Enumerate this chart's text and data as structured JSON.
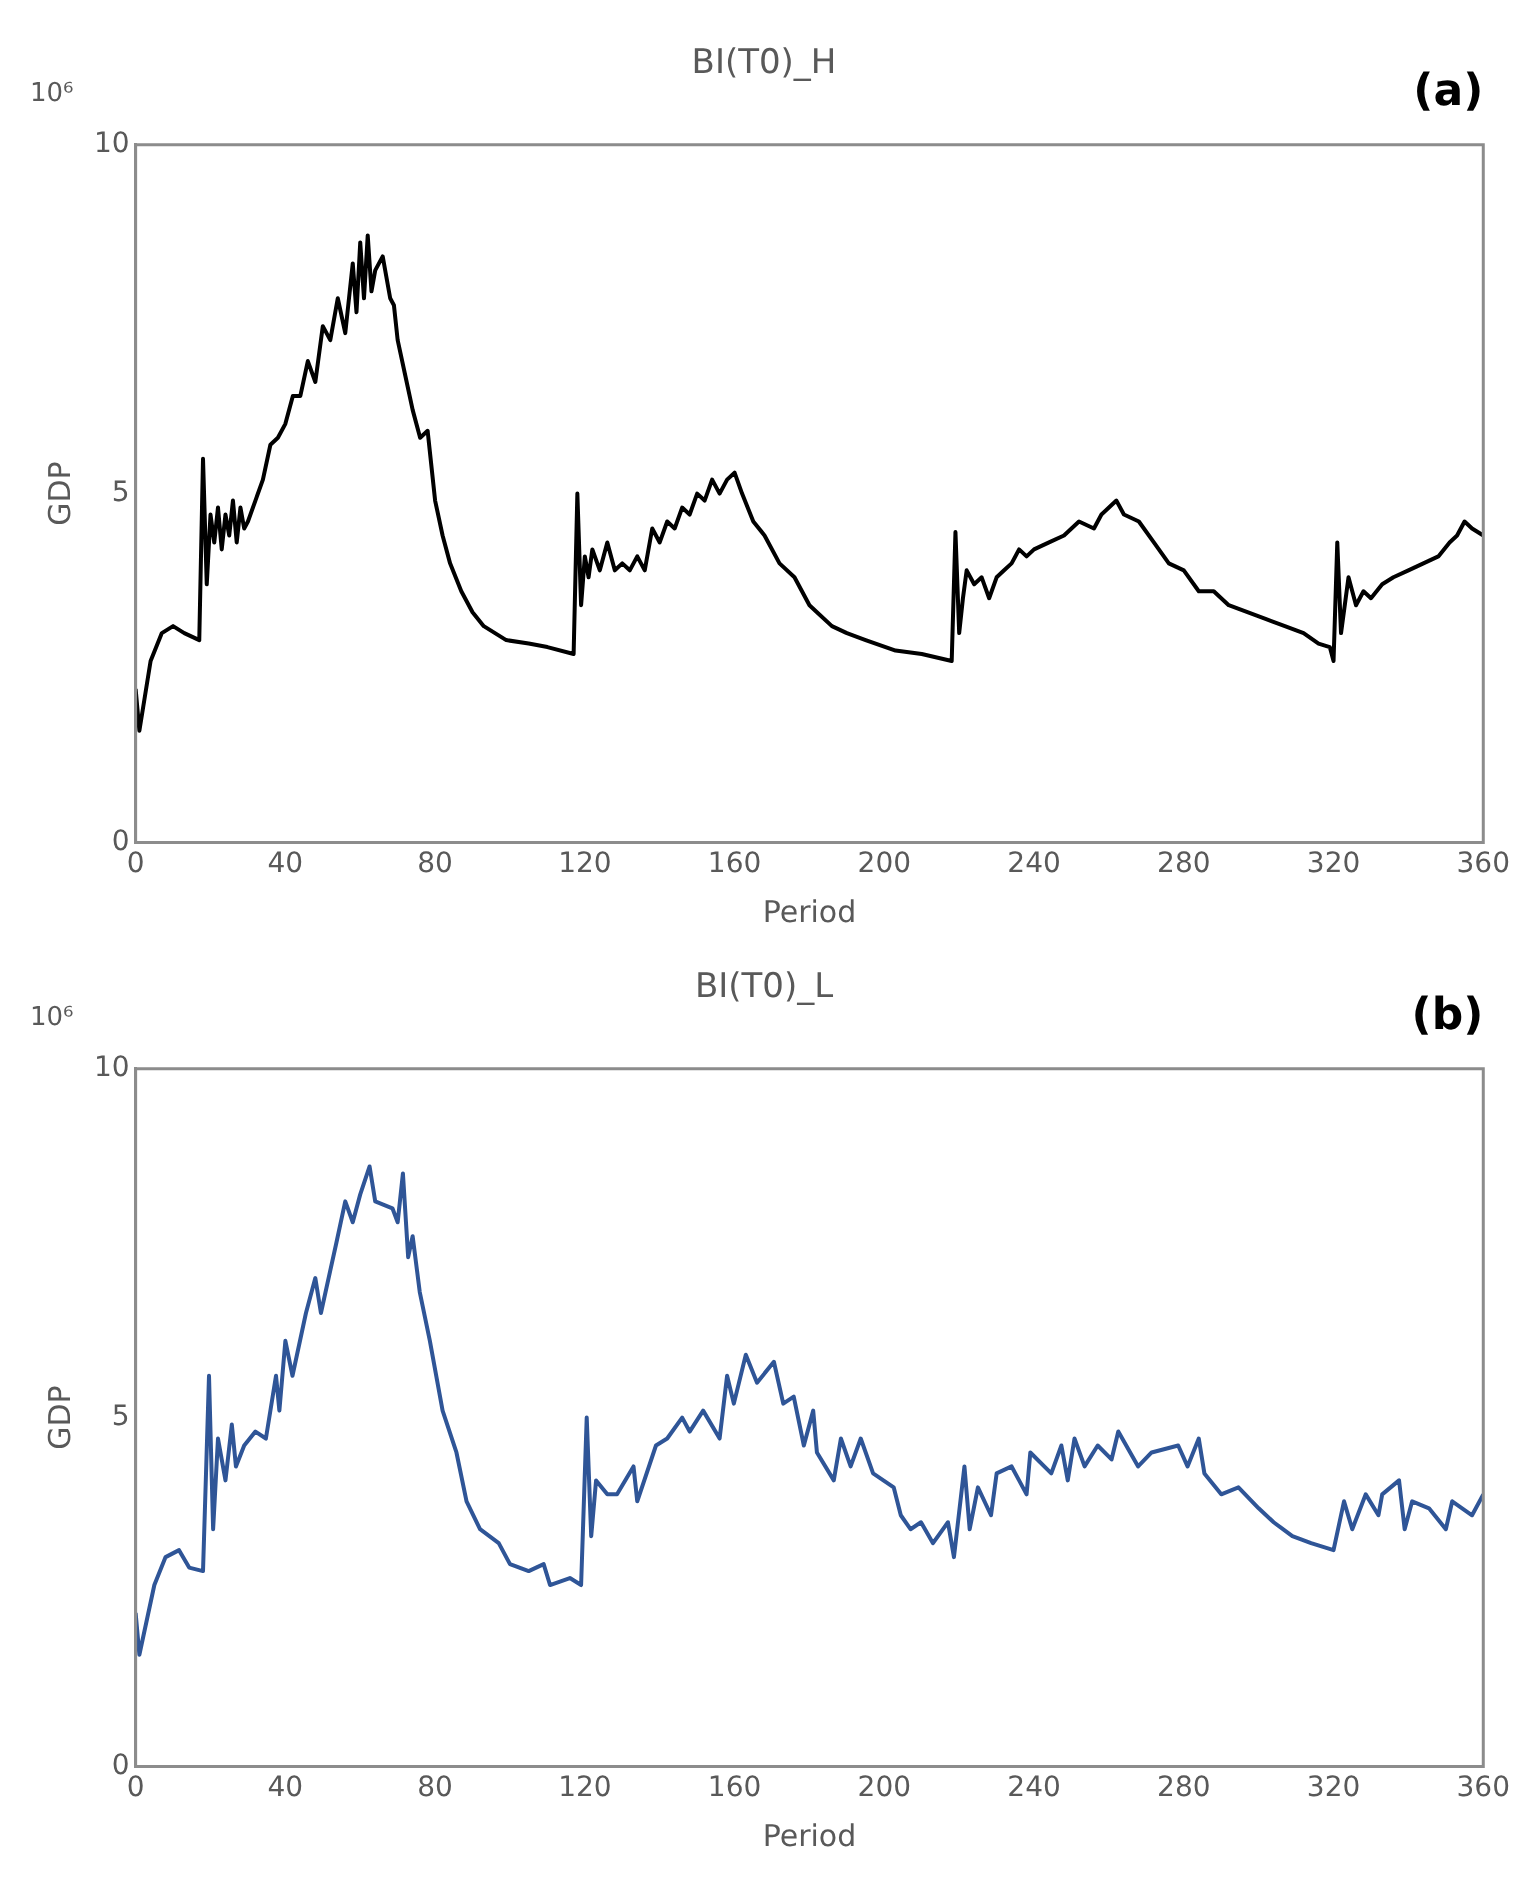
{
  "chart_data": [
    {
      "type": "line",
      "title": "BI(T0)_H",
      "xlabel": "Period",
      "ylabel": "GDP",
      "annotations": [
        "10⁶",
        "(a)"
      ],
      "xlim": [
        0,
        360
      ],
      "xticks": [
        0,
        40,
        80,
        120,
        160,
        200,
        240,
        280,
        320,
        360
      ],
      "ylim": [
        0,
        10
      ],
      "yticks": [
        0,
        5,
        10
      ],
      "series": [
        {
          "color": "#000000",
          "x": [
            0,
            1,
            4,
            7,
            10,
            13,
            17,
            18,
            19,
            20,
            21,
            22,
            23,
            24,
            25,
            26,
            27,
            28,
            29,
            30,
            32,
            34,
            36,
            38,
            40,
            42,
            44,
            46,
            48,
            50,
            52,
            54,
            56,
            58,
            59,
            60,
            61,
            62,
            63,
            64,
            66,
            68,
            69,
            70,
            72,
            74,
            76,
            78,
            80,
            82,
            84,
            87,
            90,
            93,
            96,
            99,
            105,
            110,
            117,
            118,
            119,
            120,
            121,
            122,
            124,
            126,
            128,
            130,
            132,
            134,
            136,
            138,
            140,
            142,
            144,
            146,
            148,
            150,
            152,
            154,
            156,
            158,
            160,
            162,
            165,
            168,
            172,
            176,
            180,
            182,
            186,
            190,
            195,
            203,
            210,
            218,
            219,
            220,
            221,
            222,
            224,
            226,
            228,
            230,
            232,
            234,
            236,
            238,
            240,
            244,
            248,
            252,
            256,
            258,
            260,
            262,
            264,
            268,
            272,
            276,
            280,
            284,
            288,
            292,
            297,
            302,
            307,
            312,
            316,
            319,
            320,
            321,
            322,
            324,
            326,
            328,
            330,
            333,
            336,
            340,
            344,
            348,
            351,
            353,
            355,
            357,
            360
          ],
          "values": [
            2.2,
            1.6,
            2.6,
            3.0,
            3.1,
            3.0,
            2.9,
            5.5,
            3.7,
            4.7,
            4.3,
            4.8,
            4.2,
            4.7,
            4.4,
            4.9,
            4.3,
            4.8,
            4.5,
            4.6,
            4.9,
            5.2,
            5.7,
            5.8,
            6.0,
            6.4,
            6.4,
            6.9,
            6.6,
            7.4,
            7.2,
            7.8,
            7.3,
            8.3,
            7.6,
            8.6,
            7.8,
            8.7,
            7.9,
            8.2,
            8.4,
            7.8,
            7.7,
            7.2,
            6.7,
            6.2,
            5.8,
            5.9,
            4.9,
            4.4,
            4.0,
            3.6,
            3.3,
            3.1,
            3.0,
            2.9,
            2.85,
            2.8,
            2.7,
            5.0,
            3.4,
            4.1,
            3.8,
            4.2,
            3.9,
            4.3,
            3.9,
            4.0,
            3.9,
            4.1,
            3.9,
            4.5,
            4.3,
            4.6,
            4.5,
            4.8,
            4.7,
            5.0,
            4.9,
            5.2,
            5.0,
            5.2,
            5.3,
            5.0,
            4.6,
            4.4,
            4.0,
            3.8,
            3.4,
            3.3,
            3.1,
            3.0,
            2.9,
            2.75,
            2.7,
            2.6,
            4.45,
            3.0,
            3.5,
            3.9,
            3.7,
            3.8,
            3.5,
            3.8,
            3.9,
            4.0,
            4.2,
            4.1,
            4.2,
            4.3,
            4.4,
            4.6,
            4.5,
            4.7,
            4.8,
            4.9,
            4.7,
            4.6,
            4.3,
            4.0,
            3.9,
            3.6,
            3.6,
            3.4,
            3.3,
            3.2,
            3.1,
            3.0,
            2.85,
            2.8,
            2.6,
            4.3,
            3.0,
            3.8,
            3.4,
            3.6,
            3.5,
            3.7,
            3.8,
            3.9,
            4.0,
            4.1,
            4.3,
            4.4,
            4.6,
            4.5,
            4.4
          ]
        }
      ]
    },
    {
      "type": "line",
      "title": "BI(T0)_L",
      "xlabel": "Period",
      "ylabel": "GDP",
      "annotations": [
        "10⁶",
        "(b)"
      ],
      "xlim": [
        0,
        360
      ],
      "xticks": [
        0,
        40,
        80,
        120,
        160,
        200,
        240,
        280,
        320,
        360
      ],
      "ylim": [
        0,
        10
      ],
      "yticks": [
        0,
        5,
        10
      ],
      "series": [
        {
          "color": "#2f5597",
          "x": [
            0,
            1,
            5,
            8,
            11.6,
            14.3,
            18,
            19.6,
            20.7,
            22,
            24,
            25.7,
            26.8,
            29,
            32,
            34.8,
            37.5,
            38.4,
            40,
            41.9,
            45.5,
            48,
            49.5,
            53.6,
            56,
            58,
            60,
            62.5,
            64,
            68.6,
            70,
            71.4,
            72.8,
            74,
            75.9,
            78.6,
            82,
            85.7,
            88.4,
            92,
            97,
            100,
            105,
            109,
            110.7,
            116,
            119,
            120.5,
            121.7,
            123,
            126,
            128.6,
            133,
            134,
            139,
            142,
            146,
            148,
            151.6,
            156,
            158,
            159.8,
            163,
            166,
            170.5,
            173,
            175.8,
            178.5,
            181,
            182,
            186.5,
            188.4,
            191,
            193.7,
            197,
            202.5,
            204.4,
            207,
            209.8,
            213,
            217,
            218.6,
            221.4,
            222.8,
            225,
            228.5,
            230,
            234,
            238,
            239,
            244.6,
            247.3,
            249,
            250.8,
            253.5,
            257,
            260.7,
            262.5,
            267.8,
            271.4,
            278.5,
            281,
            284,
            285.5,
            290,
            294.6,
            300,
            304,
            309,
            314,
            320,
            322.8,
            325,
            328.6,
            332,
            333,
            337.5,
            339,
            341,
            345.5,
            350,
            351.7,
            357,
            360
          ],
          "values": [
            2.2,
            1.6,
            2.6,
            3.0,
            3.1,
            2.85,
            2.8,
            5.6,
            3.4,
            4.7,
            4.1,
            4.9,
            4.3,
            4.6,
            4.8,
            4.7,
            5.6,
            5.1,
            6.1,
            5.6,
            6.5,
            7.0,
            6.5,
            7.5,
            8.1,
            7.8,
            8.2,
            8.6,
            8.1,
            8.0,
            7.8,
            8.5,
            7.3,
            7.6,
            6.8,
            6.1,
            5.1,
            4.5,
            3.8,
            3.4,
            3.2,
            2.9,
            2.8,
            2.9,
            2.6,
            2.7,
            2.6,
            5.0,
            3.3,
            4.1,
            3.9,
            3.9,
            4.3,
            3.8,
            4.6,
            4.7,
            5.0,
            4.8,
            5.1,
            4.7,
            5.6,
            5.2,
            5.9,
            5.5,
            5.8,
            5.2,
            5.3,
            4.6,
            5.1,
            4.5,
            4.1,
            4.7,
            4.3,
            4.7,
            4.2,
            4.0,
            3.6,
            3.4,
            3.5,
            3.2,
            3.5,
            3.0,
            4.3,
            3.4,
            4.0,
            3.6,
            4.2,
            4.3,
            3.9,
            4.5,
            4.2,
            4.6,
            4.1,
            4.7,
            4.3,
            4.6,
            4.4,
            4.8,
            4.3,
            4.5,
            4.6,
            4.3,
            4.7,
            4.2,
            3.9,
            4.0,
            3.7,
            3.5,
            3.3,
            3.2,
            3.1,
            3.8,
            3.4,
            3.9,
            3.6,
            3.9,
            4.1,
            3.4,
            3.8,
            3.7,
            3.4,
            3.8,
            3.6,
            3.9
          ]
        }
      ]
    }
  ]
}
